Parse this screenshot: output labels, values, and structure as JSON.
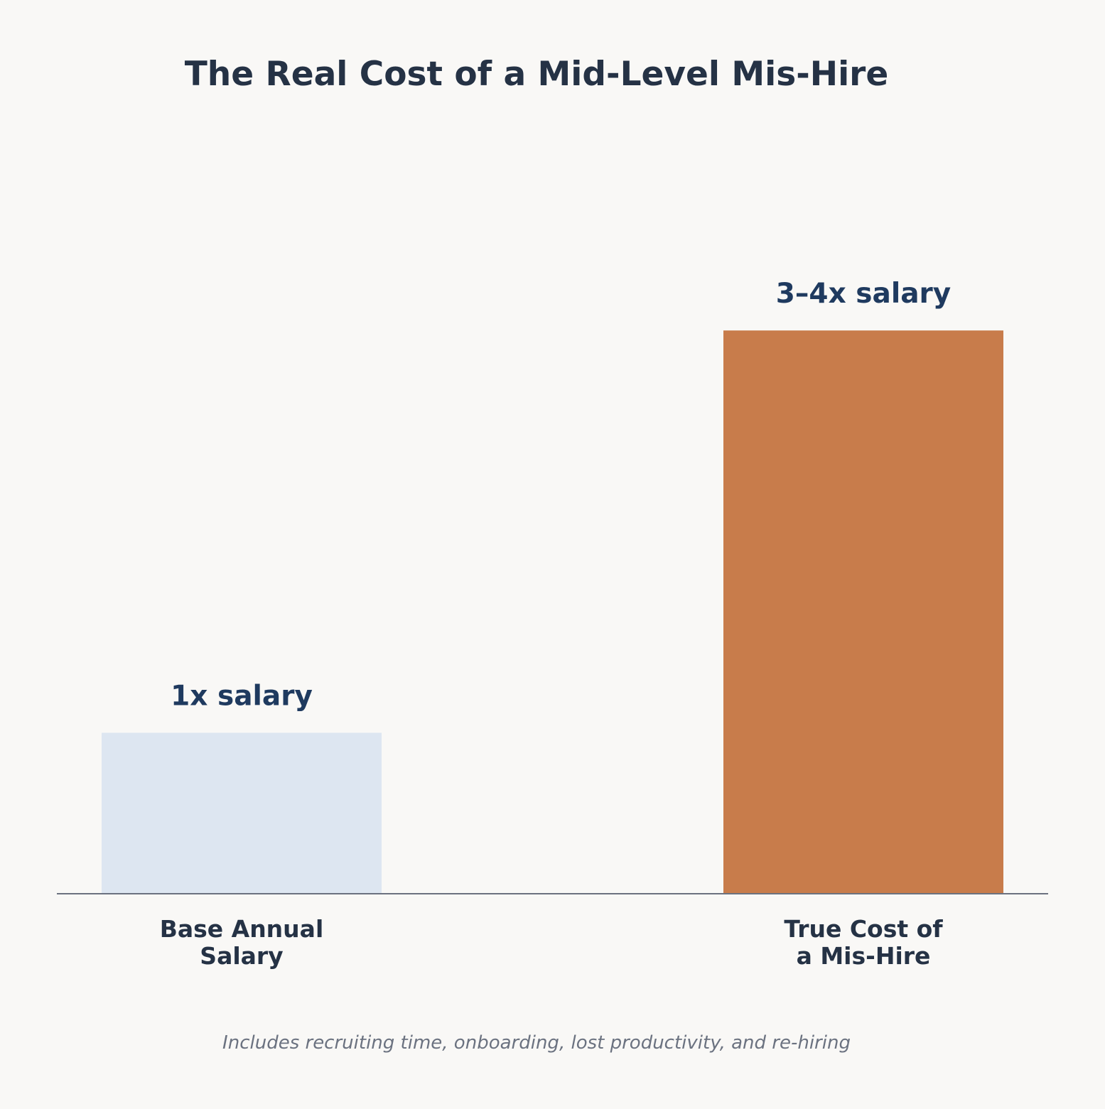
{
  "chart_data": {
    "type": "bar",
    "title": "The Real Cost of a Mid-Level Mis-Hire",
    "categories": [
      [
        "Base Annual",
        "Salary"
      ],
      [
        "True Cost of",
        "a Mis-Hire"
      ]
    ],
    "values": [
      1,
      3.5
    ],
    "value_labels": [
      "1x salary",
      "3–4x salary"
    ],
    "colors": [
      "#dde6f1",
      "#c87c4b"
    ],
    "ylim": [
      0,
      4.6
    ],
    "grid": false,
    "footnote": "Includes recruiting time, onboarding, lost productivity, and re-hiring"
  }
}
